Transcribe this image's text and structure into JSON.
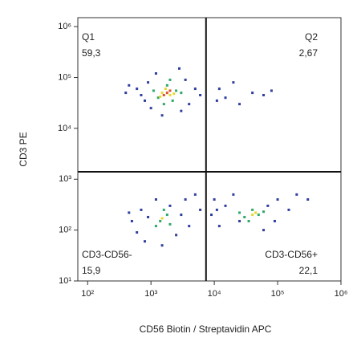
{
  "chart_data": {
    "type": "scatter",
    "xlabel": "CD56 Biotin / Streptavidin APC",
    "ylabel": "CD3 PE",
    "xscale": "log",
    "yscale": "log",
    "xlim": [
      70,
      1000000
    ],
    "ylim": [
      10,
      1500000
    ],
    "xticks": [
      {
        "value": 100,
        "label": "10²"
      },
      {
        "value": 1000,
        "label": "10³"
      },
      {
        "value": 10000,
        "label": "10⁴"
      },
      {
        "value": 100000,
        "label": "10⁵"
      },
      {
        "value": 1000000,
        "label": "10⁶"
      }
    ],
    "yticks": [
      {
        "value": 10,
        "label": "10¹"
      },
      {
        "value": 100,
        "label": "10²"
      },
      {
        "value": 1000,
        "label": "10³"
      },
      {
        "value": 10000,
        "label": "10⁴"
      },
      {
        "value": 100000,
        "label": "10⁵"
      },
      {
        "value": 1000000,
        "label": "10⁶"
      }
    ],
    "gates": {
      "x": 7400,
      "y": 1400
    },
    "quadrants": {
      "names": [
        "Q1",
        "Q2",
        "CD3-CD56-",
        "CD3-CD56+"
      ],
      "values": [
        59.3,
        2.67,
        15.9,
        22.1
      ],
      "value_labels": [
        "59,3",
        "2,67",
        "15,9",
        "22,1"
      ]
    },
    "series": [
      {
        "color": "#2f3f9e",
        "x": [
          600,
          800,
          900,
          1000,
          1200,
          3500,
          4000,
          5000,
          700,
          2800,
          3000,
          1500,
          450,
          6000,
          400,
          12000,
          15000,
          20000,
          25000,
          40000,
          60000,
          11000,
          80000,
          500,
          600,
          700,
          800,
          1200,
          2000,
          2500,
          3000,
          3500,
          4000,
          5000,
          6000,
          900,
          450,
          1500,
          9000,
          10000,
          12000,
          15000,
          20000,
          25000,
          70000,
          90000,
          100000,
          150000,
          200000,
          300000,
          60000,
          11000
        ],
        "values": [
          60000,
          35000,
          80000,
          25000,
          120000,
          90000,
          30000,
          60000,
          45000,
          150000,
          22000,
          18000,
          70000,
          45000,
          50000,
          60000,
          40000,
          80000,
          30000,
          50000,
          45000,
          35000,
          55000,
          150,
          90,
          250,
          60,
          400,
          300,
          80,
          200,
          400,
          120,
          500,
          250,
          180,
          220,
          50,
          200,
          400,
          120,
          300,
          500,
          150,
          300,
          150,
          400,
          250,
          500,
          400,
          100,
          250
        ]
      },
      {
        "color": "#2fa86a",
        "x": [
          1300,
          1800,
          2200,
          2500,
          1100,
          2000,
          3000,
          1600,
          1400,
          1800,
          1200,
          2000,
          1600,
          30000,
          40000,
          50000,
          35000,
          25000,
          60000
        ],
        "values": [
          40000,
          70000,
          35000,
          55000,
          55000,
          90000,
          50000,
          30000,
          150,
          200,
          120,
          130,
          250,
          180,
          250,
          200,
          150,
          220,
          230
        ]
      },
      {
        "color": "#e8d630",
        "x": [
          1500,
          2000,
          1700,
          1400,
          2300,
          1500,
          40000,
          45000
        ],
        "values": [
          50000,
          45000,
          60000,
          42000,
          48000,
          170,
          200,
          220
        ]
      },
      {
        "color": "#e0502a",
        "x": [
          1800,
          1600,
          2000
        ],
        "values": [
          50000,
          45000,
          55000
        ]
      }
    ]
  }
}
